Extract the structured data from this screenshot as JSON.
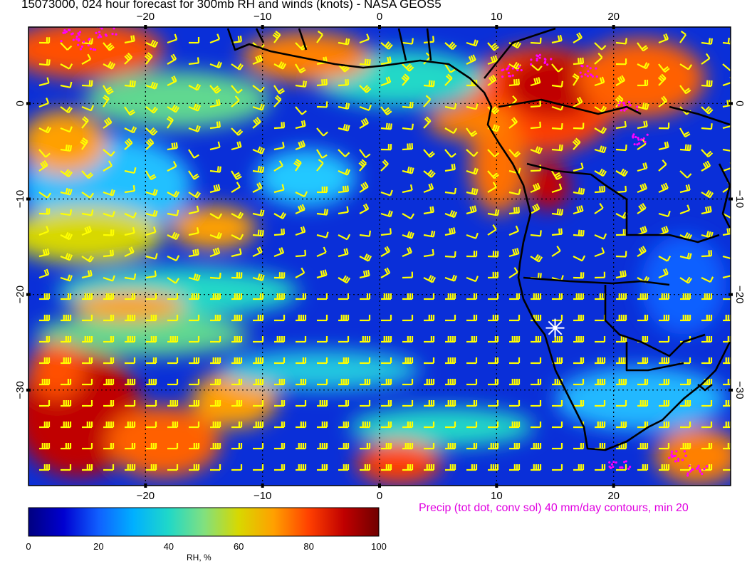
{
  "title": "15073000, 024 hour forecast for 300mb RH and winds (knots) - NASA GEOS5",
  "lon_ticks": [
    "−20",
    "−10",
    "0",
    "10",
    "20"
  ],
  "lat_ticks": [
    "0",
    "−10",
    "−20",
    "−30"
  ],
  "precip_note": "Precip (tot dot, conv sol) 40 mm/day contours, min 20",
  "colorbar": {
    "label": "RH, %",
    "ticks": [
      "0",
      "20",
      "40",
      "60",
      "80",
      "100"
    ],
    "stops": [
      "#000080",
      "#0000d0",
      "#1060ff",
      "#00b0ff",
      "#20d8c8",
      "#80e080",
      "#d8d800",
      "#ffa000",
      "#ff4000",
      "#c00000",
      "#700000"
    ]
  },
  "colors": {
    "wind_barb": "#ffff00",
    "precip": "#ff00ff",
    "coastline": "#000000",
    "marker": "#ffffff"
  },
  "map": {
    "lon_range": [
      -30,
      30
    ],
    "lat_range": [
      -40,
      8
    ],
    "marker_location": {
      "lon": 15,
      "lat": -23.5
    }
  }
}
